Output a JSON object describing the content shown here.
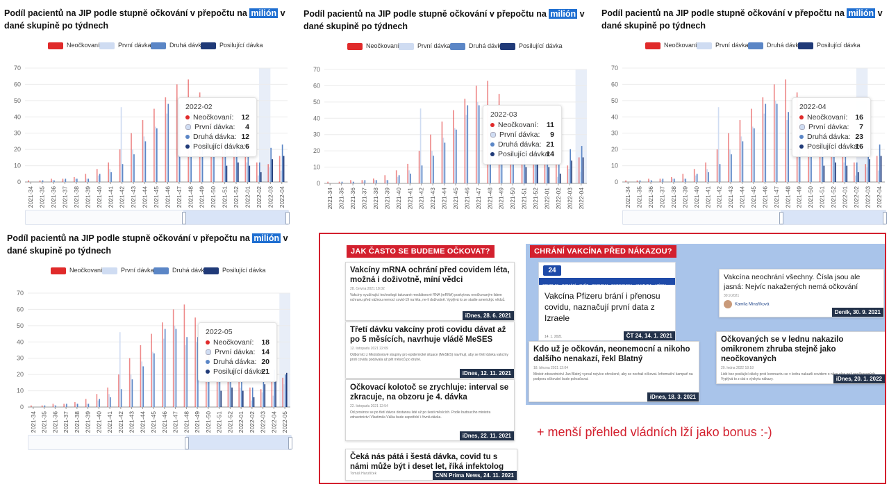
{
  "chart_common": {
    "title_before": "Podíl pacientů na JIP podle stupně očkování v přepočtu na ",
    "title_highlight": "milión",
    "title_after": " v dané skupině po týdnech",
    "legend": [
      "Neočkovaní",
      "První dávka",
      "Druhá dávka",
      "Posilující dávka"
    ],
    "colors": {
      "neockovani": "#e02a2a",
      "prvni": "#cfdcf2",
      "druha": "#5b86c6",
      "posilujici": "#203a78"
    },
    "y_ticks": [
      "0",
      "10",
      "20",
      "30",
      "40",
      "50",
      "60",
      "70"
    ]
  },
  "chart_data": [
    {
      "type": "bar",
      "title": "Podíl pacientů na JIP podle stupně očkování v přepočtu na milión v dané skupině po týdnech",
      "ylim": [
        0,
        70
      ],
      "categories": [
        "2021-34",
        "2021-35",
        "2021-36",
        "2021-37",
        "2021-38",
        "2021-39",
        "2021-40",
        "2021-41",
        "2021-42",
        "2021-43",
        "2021-44",
        "2021-45",
        "2021-46",
        "2021-47",
        "2021-48",
        "2021-49",
        "2021-50",
        "2021-51",
        "2021-52",
        "2022-01",
        "2022-02",
        "2022-03",
        "2022-04"
      ],
      "series": [
        {
          "name": "Neočkovaní",
          "values": [
            1,
            1,
            2,
            2,
            3,
            5,
            8,
            12,
            20,
            30,
            38,
            45,
            52,
            60,
            63,
            55,
            45,
            38,
            28,
            18,
            12,
            11,
            16
          ]
        },
        {
          "name": "První dávka",
          "values": [
            0,
            0,
            1,
            1,
            2,
            2,
            4,
            8,
            46,
            20,
            28,
            34,
            42,
            50,
            38,
            40,
            38,
            32,
            24,
            12,
            4,
            9,
            7
          ]
        },
        {
          "name": "Druhá dávka",
          "values": [
            0,
            1,
            1,
            2,
            2,
            2,
            5,
            6,
            11,
            17,
            25,
            33,
            48,
            48,
            43,
            43,
            36,
            30,
            24,
            16,
            12,
            21,
            23
          ]
        },
        {
          "name": "Posilující dávka",
          "values": [
            0,
            0,
            0,
            0,
            0,
            0,
            0,
            0,
            0,
            0,
            0,
            0,
            0,
            0,
            0,
            0,
            0,
            10,
            12,
            10,
            6,
            14,
            16
          ]
        }
      ],
      "tooltip": {
        "title": "2022-02",
        "values": [
          12,
          4,
          12,
          6
        ]
      }
    },
    {
      "type": "bar",
      "title": "Podíl pacientů na JIP podle stupně očkování v přepočtu na milión v dané skupině po týdnech",
      "ylim": [
        0,
        70
      ],
      "categories": [
        "2021-34",
        "2021-35",
        "2021-36",
        "2021-37",
        "2021-38",
        "2021-39",
        "2021-40",
        "2021-41",
        "2021-42",
        "2021-43",
        "2021-44",
        "2021-45",
        "2021-46",
        "2021-47",
        "2021-48",
        "2021-49",
        "2021-50",
        "2021-51",
        "2021-52",
        "2022-01",
        "2022-02",
        "2022-03",
        "2022-04"
      ],
      "series": [
        {
          "name": "Neočkovaní",
          "values": [
            1,
            1,
            2,
            2,
            3,
            5,
            8,
            12,
            20,
            30,
            38,
            45,
            52,
            60,
            63,
            55,
            45,
            38,
            28,
            18,
            12,
            11,
            16
          ]
        },
        {
          "name": "První dávka",
          "values": [
            0,
            0,
            1,
            1,
            2,
            2,
            4,
            8,
            46,
            20,
            28,
            34,
            42,
            50,
            38,
            40,
            38,
            32,
            24,
            12,
            4,
            9,
            7
          ]
        },
        {
          "name": "Druhá dávka",
          "values": [
            0,
            1,
            1,
            2,
            2,
            2,
            5,
            6,
            11,
            17,
            25,
            33,
            48,
            48,
            43,
            43,
            36,
            30,
            24,
            16,
            12,
            21,
            23
          ]
        },
        {
          "name": "Posilující dávka",
          "values": [
            0,
            0,
            0,
            0,
            0,
            0,
            0,
            0,
            0,
            0,
            0,
            0,
            0,
            0,
            0,
            0,
            0,
            10,
            12,
            10,
            6,
            14,
            16
          ]
        }
      ],
      "tooltip": {
        "title": "2022-03",
        "values": [
          11,
          9,
          21,
          14
        ]
      }
    },
    {
      "type": "bar",
      "title": "Podíl pacientů na JIP podle stupně očkování v přepočtu na milión v dané skupině po týdnech",
      "ylim": [
        0,
        70
      ],
      "categories": [
        "2021-34",
        "2021-35",
        "2021-36",
        "2021-37",
        "2021-38",
        "2021-39",
        "2021-40",
        "2021-41",
        "2021-42",
        "2021-43",
        "2021-44",
        "2021-45",
        "2021-46",
        "2021-47",
        "2021-48",
        "2021-49",
        "2021-50",
        "2021-51",
        "2021-52",
        "2022-01",
        "2022-02",
        "2022-03",
        "2022-04"
      ],
      "series": [
        {
          "name": "Neočkovaní",
          "values": [
            1,
            1,
            2,
            2,
            3,
            5,
            8,
            12,
            20,
            30,
            38,
            45,
            52,
            60,
            63,
            55,
            45,
            38,
            28,
            18,
            12,
            11,
            16
          ]
        },
        {
          "name": "První dávka",
          "values": [
            0,
            0,
            1,
            1,
            2,
            2,
            4,
            8,
            46,
            20,
            28,
            34,
            42,
            50,
            38,
            40,
            38,
            32,
            24,
            12,
            4,
            9,
            7
          ]
        },
        {
          "name": "Druhá dávka",
          "values": [
            0,
            1,
            1,
            2,
            2,
            2,
            5,
            6,
            11,
            17,
            25,
            33,
            48,
            48,
            43,
            43,
            36,
            30,
            24,
            16,
            12,
            21,
            23
          ]
        },
        {
          "name": "Posilující dávka",
          "values": [
            0,
            0,
            0,
            0,
            0,
            0,
            0,
            0,
            0,
            0,
            0,
            0,
            0,
            0,
            0,
            0,
            0,
            10,
            12,
            10,
            6,
            14,
            16
          ]
        }
      ],
      "tooltip": {
        "title": "2022-04",
        "values": [
          16,
          7,
          23,
          16
        ]
      }
    },
    {
      "type": "bar",
      "title": "Podíl pacientů na JIP podle stupně očkování v přepočtu na milión v dané skupině po týdnech",
      "ylim": [
        0,
        70
      ],
      "categories": [
        "2021-34",
        "2021-35",
        "2021-36",
        "2021-37",
        "2021-38",
        "2021-39",
        "2021-40",
        "2021-41",
        "2021-42",
        "2021-43",
        "2021-44",
        "2021-45",
        "2021-46",
        "2021-47",
        "2021-48",
        "2021-49",
        "2021-50",
        "2021-51",
        "2021-52",
        "2022-01",
        "2022-02",
        "2022-03",
        "2022-04",
        "2022-05"
      ],
      "series": [
        {
          "name": "Neočkovaní",
          "values": [
            1,
            1,
            2,
            2,
            3,
            5,
            8,
            12,
            20,
            30,
            38,
            45,
            52,
            60,
            63,
            55,
            45,
            38,
            28,
            18,
            12,
            11,
            16,
            18
          ]
        },
        {
          "name": "První dávka",
          "values": [
            0,
            0,
            1,
            1,
            2,
            2,
            4,
            8,
            46,
            20,
            28,
            34,
            42,
            50,
            38,
            40,
            38,
            32,
            24,
            12,
            4,
            9,
            7,
            14
          ]
        },
        {
          "name": "Druhá dávka",
          "values": [
            0,
            1,
            1,
            2,
            2,
            2,
            5,
            6,
            11,
            17,
            25,
            33,
            48,
            48,
            43,
            43,
            36,
            30,
            24,
            16,
            12,
            21,
            23,
            20
          ]
        },
        {
          "name": "Posilující dávka",
          "values": [
            0,
            0,
            0,
            0,
            0,
            0,
            0,
            0,
            0,
            0,
            0,
            0,
            0,
            0,
            0,
            0,
            0,
            10,
            12,
            10,
            6,
            14,
            16,
            21
          ]
        }
      ],
      "tooltip": {
        "title": "2022-05",
        "values": [
          18,
          14,
          20,
          21
        ]
      }
    }
  ],
  "collage": {
    "label_left": "JAK ČASTO SE BUDEME OČKOVAT?",
    "label_right": "CHRÁNÍ VAKCÍNA PŘED NÁKAZOU?",
    "bonus": "+ menší přehled vládních lží jako bonus :-)",
    "articles_left": [
      {
        "headline": "Vakcíny mRNA ochrání před covidem léta, možná i doživotně, míní vědci",
        "meta": "28. června 2021  18:02",
        "body": "Vakcíny využívající technologii takzvané mediátorové RNA (mRNA) poskytnou neočkovaným lidem ochranu před vážnou nemocí covid-19 na léta, ne-li doživotně. Vyplývá to ze studie americkýc vědců.",
        "source": "iDnes, 28. 6. 2021"
      },
      {
        "headline": "Třetí dávku vakcíny proti covidu dávat až po 5 měsících, navrhuje vládě MeSES",
        "meta": "12. listopadu 2021  22:09",
        "body": "Odborníci z Mezioborové skupiny pro epidemické situace (MeSES) navrhují, aby se třetí dávka vakcíny proti covidu podávala až pět měsíců po druhé.",
        "source": "iDnes, 12. 11. 2021"
      },
      {
        "headline": "Očkovací kolotoč se zrychluje: interval se zkracuje, na obzoru je 4. dávka",
        "meta": "22. listopadu 2021  12:54",
        "body": "Od prosince se po třetí dávce dostanou lidé už po šesti měsících. Podle budoucího ministra zdravotnictví Vlastimila Válka bude zapotřebí i čtvrtá dávka.",
        "source": "iDnes, 22. 11. 2021"
      },
      {
        "headline": "Čeká nás pátá i šestá dávka, covid tu s námi může být i deset let, říká infektolog",
        "meta": "Tomáš Hanzlíček",
        "body": "",
        "source": "CNN Prima News, 24. 11. 2021"
      }
    ],
    "articles_right": [
      {
        "headline": "Vakcína Pfizeru brání i přenosu covidu, naznačují první data z Izraele",
        "meta": "14. 1. 2021",
        "source": "ČT 24, 14. 1. 2021",
        "nav": [
          "COVID-19",
          "DOMÁCÍ",
          "SVĚT",
          "REGIONY",
          "EKONOMIKA",
          "KULTURA",
          "MÉDIA",
          "VĚDA"
        ],
        "logo": "24"
      },
      {
        "headline": "Kdo už je očkován, neonemocní a nikoho dalšího nenakazí, řekl Blatný",
        "meta": "18. března 2021  12:04",
        "body": "Ministr zdravotnictví Jan Blatný vyzval nejvíce ohrožené, aby se nechali očkovat. Informační kampaň na podporu očkování bude pokračovat.",
        "source": "iDnes, 18. 3. 2021"
      },
      {
        "headline": "Vakcína neochrání všechny. Čísla jsou ale jasná: Nejvíc nakažených nemá očkování",
        "meta": "30.9.2021",
        "author": "Kamila Minaříková",
        "source": "Deník, 30. 9. 2021"
      },
      {
        "headline": "Očkovaných se v lednu nakazilo omikronem zhruba stejně jako neočkovaných",
        "meta": "20. ledna 2022  18:18",
        "body": "Lidé bez posilující dávky proti koronaviru se v lednu nakazili covidem o něco více než neočkovaných. Vyplývá to z dat o výskytu nákazy.",
        "source": "iDnes, 20. 1. 2022"
      }
    ]
  }
}
